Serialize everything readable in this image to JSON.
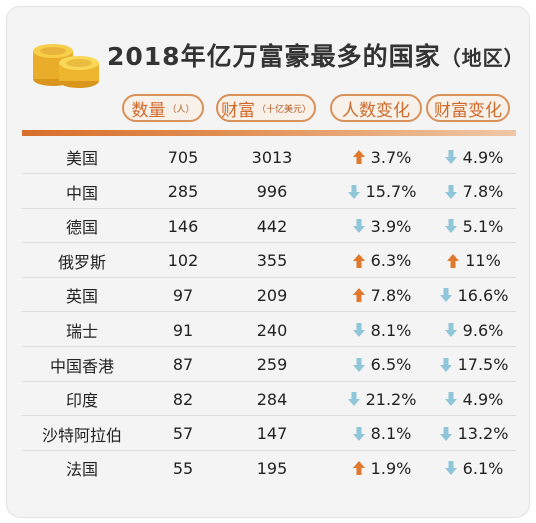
{
  "title": {
    "main": "2018年亿万富豪最多的国家",
    "paren": "（地区）"
  },
  "headers": {
    "count": {
      "label": "数量",
      "unit": "（人）"
    },
    "wealth": {
      "label": "财富",
      "unit": "（十亿美元）"
    },
    "count_change": {
      "label": "人数变化"
    },
    "wealth_change": {
      "label": "财富变化"
    }
  },
  "colors": {
    "accent": "#d06a2b",
    "up_arrow": "#e0782d",
    "down_arrow": "#8fc6d9",
    "header_border": "#d9915a"
  },
  "chart_data": {
    "type": "table",
    "columns": [
      "",
      "数量（人）",
      "财富（十亿美元）",
      "人数变化",
      "财富变化"
    ],
    "rows": [
      {
        "name": "美国",
        "count": "705",
        "wealth": "3013",
        "count_change": "3.7%",
        "count_dir": "up",
        "wealth_change": "4.9%",
        "wealth_dir": "down"
      },
      {
        "name": "中国",
        "count": "285",
        "wealth": "996",
        "count_change": "15.7%",
        "count_dir": "down",
        "wealth_change": "7.8%",
        "wealth_dir": "down"
      },
      {
        "name": "德国",
        "count": "146",
        "wealth": "442",
        "count_change": "3.9%",
        "count_dir": "down",
        "wealth_change": "5.1%",
        "wealth_dir": "down"
      },
      {
        "name": "俄罗斯",
        "count": "102",
        "wealth": "355",
        "count_change": "6.3%",
        "count_dir": "up",
        "wealth_change": "11%",
        "wealth_dir": "up"
      },
      {
        "name": "英国",
        "count": "97",
        "wealth": "209",
        "count_change": "7.8%",
        "count_dir": "up",
        "wealth_change": "16.6%",
        "wealth_dir": "down"
      },
      {
        "name": "瑞士",
        "count": "91",
        "wealth": "240",
        "count_change": "8.1%",
        "count_dir": "down",
        "wealth_change": "9.6%",
        "wealth_dir": "down"
      },
      {
        "name": "中国香港",
        "count": "87",
        "wealth": "259",
        "count_change": "6.5%",
        "count_dir": "down",
        "wealth_change": "17.5%",
        "wealth_dir": "down"
      },
      {
        "name": "印度",
        "count": "82",
        "wealth": "284",
        "count_change": "21.2%",
        "count_dir": "down",
        "wealth_change": "4.9%",
        "wealth_dir": "down"
      },
      {
        "name": "沙特阿拉伯",
        "count": "57",
        "wealth": "147",
        "count_change": "8.1%",
        "count_dir": "down",
        "wealth_change": "13.2%",
        "wealth_dir": "down"
      },
      {
        "name": "法国",
        "count": "55",
        "wealth": "195",
        "count_change": "1.9%",
        "count_dir": "up",
        "wealth_change": "6.1%",
        "wealth_dir": "down"
      }
    ]
  }
}
